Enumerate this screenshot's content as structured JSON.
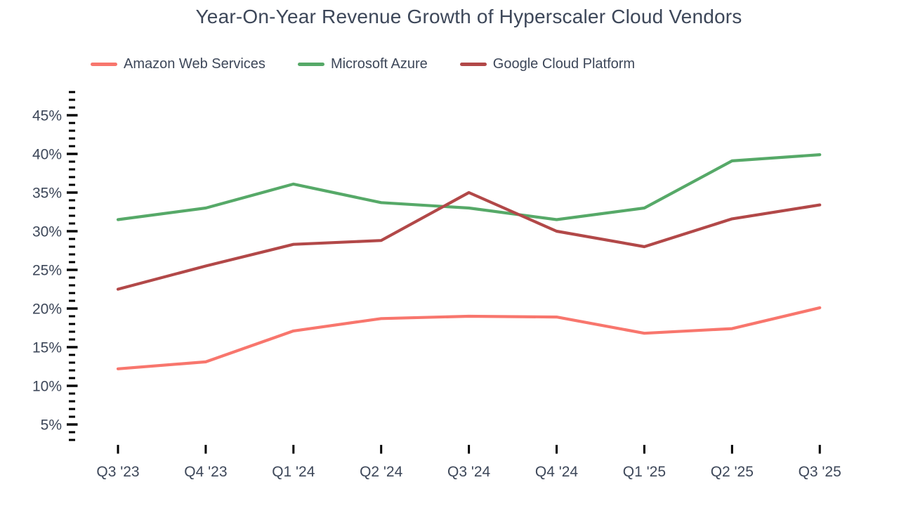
{
  "title": "Year-On-Year Revenue Growth of Hyperscaler Cloud Vendors",
  "colors": {
    "background": "#ffffff",
    "text": "#3d4759",
    "tick": "#000000",
    "aws": "#f8766d",
    "azure": "#56a968",
    "gcp": "#b24848"
  },
  "chart_data": {
    "type": "line",
    "title": "Year-On-Year Revenue Growth of Hyperscaler Cloud Vendors",
    "xlabel": "",
    "ylabel": "",
    "grid": false,
    "legend_position": "top-left",
    "categories": [
      "Q3 '23",
      "Q4 '23",
      "Q1 '24",
      "Q2 '24",
      "Q3 '24",
      "Q4 '24",
      "Q1 '25",
      "Q2 '25",
      "Q3 '25"
    ],
    "series": [
      {
        "name": "Amazon Web Services",
        "color": "#f8766d",
        "values": [
          12.2,
          13.1,
          17.1,
          18.7,
          19.0,
          18.9,
          16.8,
          17.4,
          20.1
        ]
      },
      {
        "name": "Microsoft Azure",
        "color": "#56a968",
        "values": [
          31.5,
          33.0,
          36.1,
          33.7,
          33.0,
          31.5,
          33.0,
          39.1,
          39.9
        ]
      },
      {
        "name": "Google Cloud Platform",
        "color": "#b24848",
        "values": [
          22.5,
          25.5,
          28.3,
          28.8,
          35.0,
          30.0,
          28.0,
          31.6,
          33.4
        ]
      }
    ],
    "y_major_ticks": [
      {
        "value": 5,
        "label": "5%"
      },
      {
        "value": 10,
        "label": "10%"
      },
      {
        "value": 15,
        "label": "15%"
      },
      {
        "value": 20,
        "label": "20%"
      },
      {
        "value": 25,
        "label": "25%"
      },
      {
        "value": 30,
        "label": "30%"
      },
      {
        "value": 35,
        "label": "35%"
      },
      {
        "value": 40,
        "label": "40%"
      },
      {
        "value": 45,
        "label": "45%"
      }
    ],
    "y_minor_tick_step": 1,
    "y_minor_tick_range": [
      3,
      48
    ],
    "ylim": [
      3,
      48
    ],
    "unit": "%"
  }
}
